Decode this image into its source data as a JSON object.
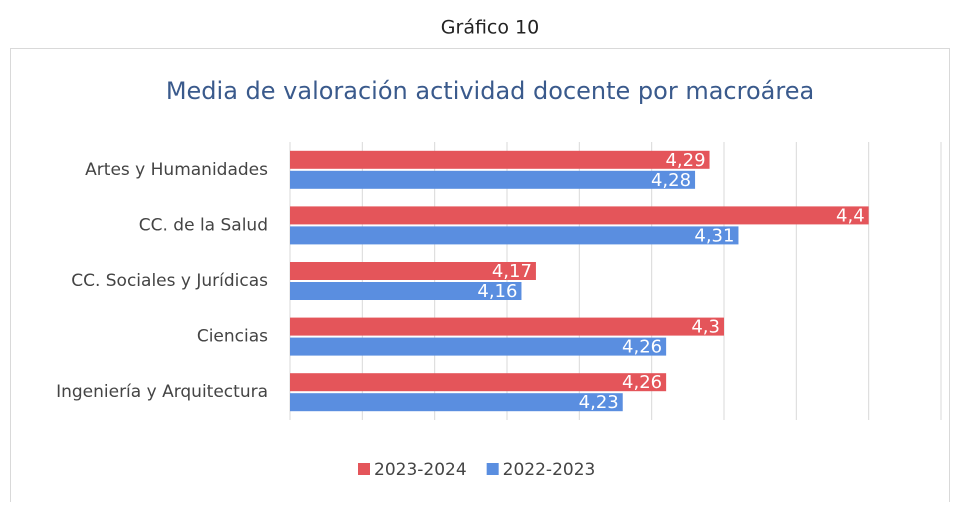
{
  "heading": "Gráfico 10",
  "chart_data": {
    "type": "barh",
    "title": "Media de valoración actividad docente por macroárea",
    "categories": [
      "Artes y Humanidades",
      "CC. de la Salud",
      "CC. Sociales y Jurídicas",
      "Ciencias",
      "Ingeniería y Arquitectura"
    ],
    "series": [
      {
        "name": "2023-2024",
        "color": "#e4555a",
        "values": [
          4.29,
          4.4,
          4.17,
          4.3,
          4.26
        ],
        "value_labels": [
          "4,29",
          "4,4",
          "4,17",
          "4,3",
          "4,26"
        ]
      },
      {
        "name": "2022-2023",
        "color": "#5a8ee0",
        "values": [
          4.28,
          4.31,
          4.16,
          4.26,
          4.23
        ],
        "value_labels": [
          "4,28",
          "4,31",
          "4,16",
          "4,26",
          "4,23"
        ]
      }
    ],
    "xlim": [
      4.0,
      4.45
    ],
    "xticks": [
      4.0,
      4.05,
      4.1,
      4.15,
      4.2,
      4.25,
      4.3,
      4.35,
      4.4,
      4.45
    ],
    "grid": true,
    "legend": "bottom"
  }
}
